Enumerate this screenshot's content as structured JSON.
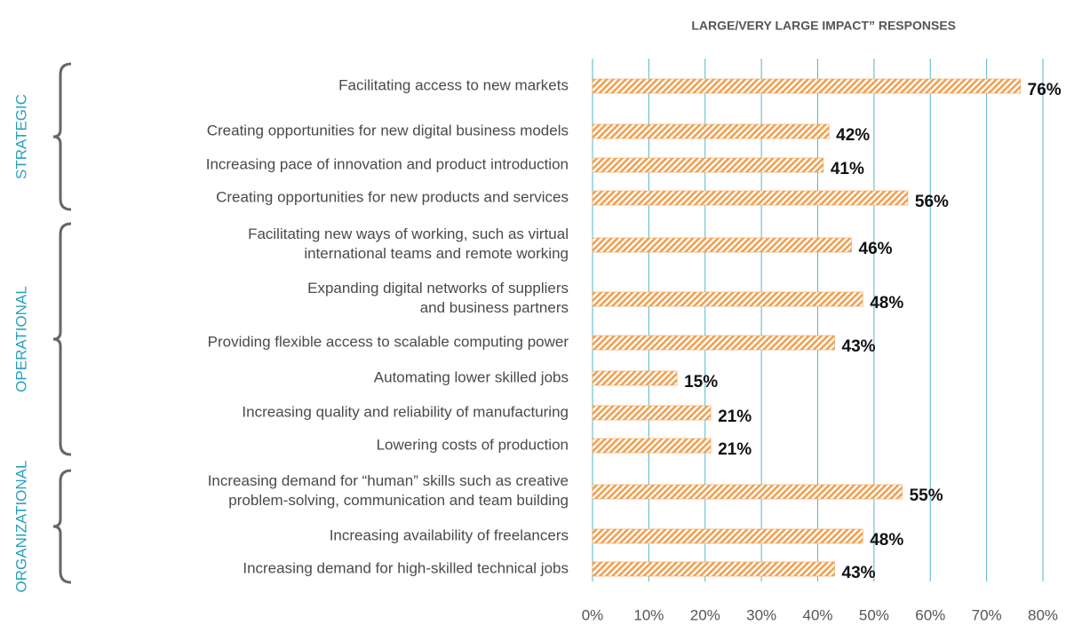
{
  "chart_data": {
    "type": "bar",
    "title": "LARGE/VERY LARGE IMPACT” RESPONSES",
    "color": "#f0a050",
    "grid": true,
    "xlim": [
      0,
      80
    ],
    "xticks": [
      {
        "value": 0,
        "label": "0%"
      },
      {
        "value": 10,
        "label": "10%"
      },
      {
        "value": 20,
        "label": "20%"
      },
      {
        "value": 30,
        "label": "30%"
      },
      {
        "value": 40,
        "label": "40%"
      },
      {
        "value": 50,
        "label": "50%"
      },
      {
        "value": 60,
        "label": "60%"
      },
      {
        "value": 70,
        "label": "70%"
      },
      {
        "value": 80,
        "label": "80%"
      }
    ],
    "groups": [
      {
        "name": "STRATEGIC",
        "categories": [
          "Facilitating access to new markets",
          "Creating opportunities for new digital business models",
          "Increasing pace of innovation and product introduction",
          "Creating opportunities for new products and services"
        ],
        "values": [
          76,
          42,
          41,
          56
        ],
        "value_labels": [
          "76%",
          "42%",
          "41%",
          "56%"
        ]
      },
      {
        "name": "OPERATIONAL",
        "categories": [
          "Facilitating new ways of working, such as virtual\ninternational teams and remote working",
          "Expanding digital networks of suppliers\nand business partners",
          "Providing flexible access to scalable computing power",
          "Automating lower skilled jobs",
          "Increasing quality and reliability of manufacturing",
          "Lowering costs of production"
        ],
        "values": [
          46,
          48,
          43,
          15,
          21,
          21
        ],
        "value_labels": [
          "46%",
          "48%",
          "43%",
          "15%",
          "21%",
          "21%"
        ]
      },
      {
        "name": "ORGANIZATIONAL",
        "categories": [
          "Increasing demand for “human” skills such as creative\nproblem-solving, communication and team building",
          "Increasing availability of freelancers",
          "Increasing demand for high-skilled technical jobs"
        ],
        "values": [
          55,
          48,
          43
        ],
        "value_labels": [
          "55%",
          "48%",
          "43%"
        ]
      }
    ]
  }
}
